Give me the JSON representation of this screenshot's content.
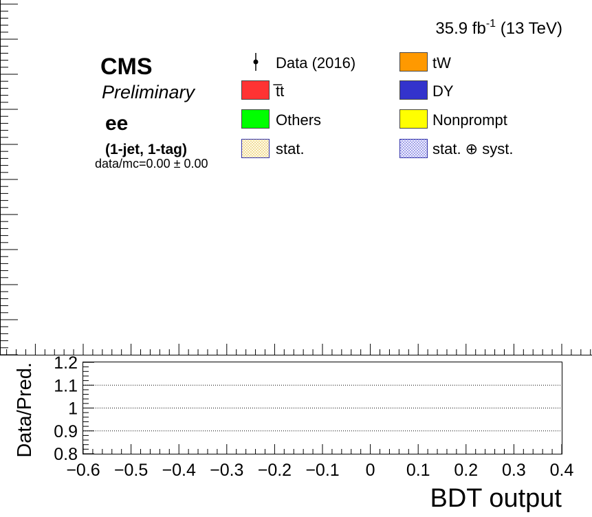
{
  "header": {
    "lumi": "35.9 fb",
    "lumi_exp": "-1",
    "energy": " (13 TeV)",
    "experiment": "CMS",
    "status": "Preliminary",
    "channel": "ee",
    "category": "(1-jet, 1-tag)",
    "ratio_text": "data/mc=0.00 ± 0.00"
  },
  "legend": {
    "items": [
      {
        "label": "Data (2016)",
        "style": "marker",
        "color": "#000000"
      },
      {
        "label": "tW",
        "style": "box",
        "color": "#ff9900"
      },
      {
        "label": "t̅t",
        "style": "box",
        "color": "#ff3333"
      },
      {
        "label": "DY",
        "style": "box",
        "color": "#3333cc"
      },
      {
        "label": "Others",
        "style": "box",
        "color": "#00ff00"
      },
      {
        "label": "Nonprompt",
        "style": "box",
        "color": "#ffff00"
      },
      {
        "label": "stat.",
        "style": "hatch",
        "color": "#e8c050"
      },
      {
        "label": "stat. ⊕ syst.",
        "style": "hatch",
        "color": "#4444cc"
      }
    ]
  },
  "chart_data": [
    {
      "type": "bar",
      "panel": "main",
      "series": [],
      "xlim": [
        -0.6,
        0.4
      ],
      "grid": false
    },
    {
      "type": "line",
      "panel": "ratio",
      "ylabel": "Data/Pred.",
      "xlabel": "BDT output",
      "xlim": [
        -0.6,
        0.4
      ],
      "ylim": [
        0.8,
        1.2
      ],
      "yticks": [
        "0.8",
        "0.9",
        "1",
        "1.1",
        "1.2"
      ],
      "xticks": [
        "−0.6",
        "−0.5",
        "−0.4",
        "−0.3",
        "−0.2",
        "−0.1",
        "0",
        "0.1",
        "0.2",
        "0.3",
        "0.4"
      ],
      "reference_lines": [
        0.9,
        1.0,
        1.1
      ],
      "series": []
    }
  ]
}
